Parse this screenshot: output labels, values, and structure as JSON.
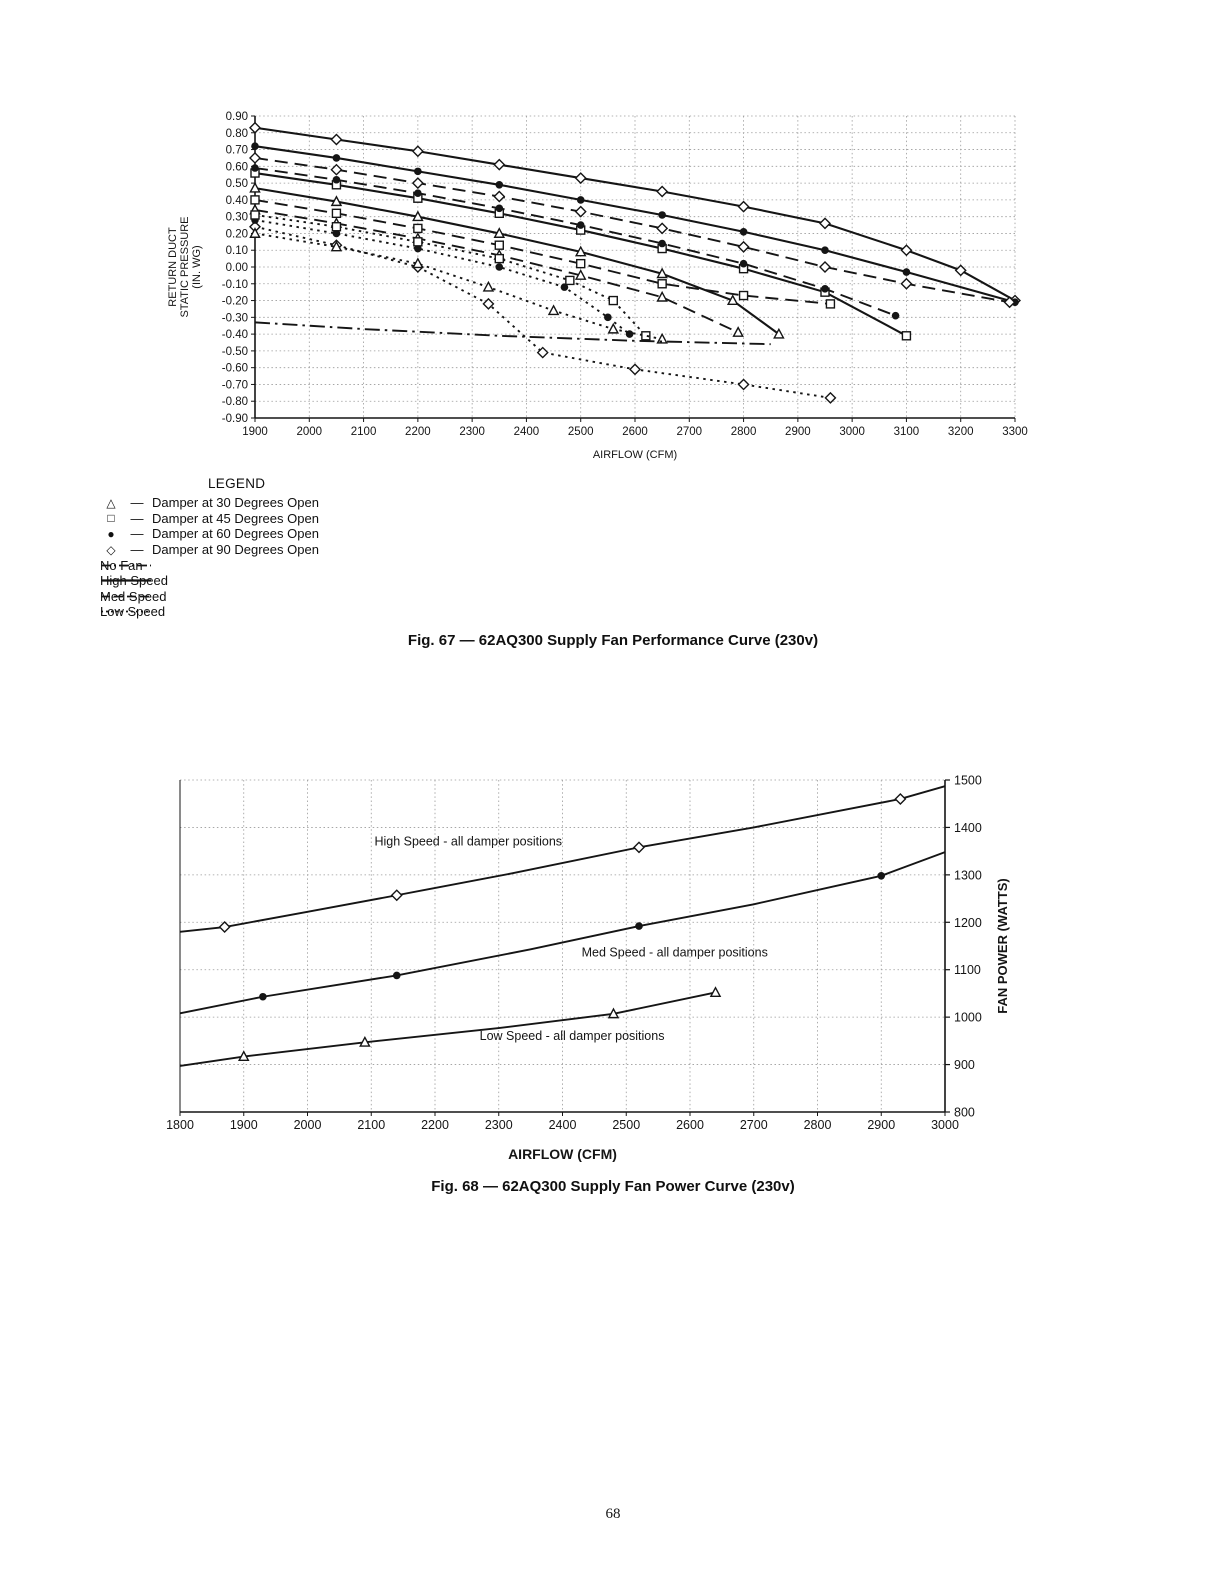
{
  "page": {
    "number": "68"
  },
  "chart_data": [
    {
      "type": "line",
      "caption": "Fig. 67 — 62AQ300 Supply Fan Performance Curve (230v)",
      "xlabel": "AIRFLOW (CFM)",
      "ylabel_lines": [
        "RETURN DUCT",
        "STATIC PRESSURE",
        "(IN. WG)"
      ],
      "xlim": [
        1900,
        3300
      ],
      "xtick_step": 100,
      "ylim": [
        -0.9,
        0.9
      ],
      "ytick_step": 0.1,
      "ytick_decimals": 2,
      "grid": true,
      "legend": {
        "title": "LEGEND",
        "marker_items": [
          {
            "symbol": "triangle",
            "label": "Damper at 30 Degrees Open"
          },
          {
            "symbol": "square",
            "label": "Damper at 45 Degrees Open"
          },
          {
            "symbol": "circle",
            "label": "Damper at 60 Degrees Open"
          },
          {
            "symbol": "diamond",
            "label": "Damper at 90 Degrees Open"
          }
        ],
        "line_items": [
          {
            "style": "dashdot",
            "label": "No Fan"
          },
          {
            "style": "solid",
            "label": "High Speed"
          },
          {
            "style": "longdash",
            "label": "Med Speed"
          },
          {
            "style": "dotted",
            "label": "Low Speed"
          }
        ]
      },
      "series": [
        {
          "name": "High Speed — Damper 90° Open",
          "marker": "diamond",
          "dash": "solid",
          "lw": 2.1,
          "points": [
            [
              1900,
              0.83
            ],
            [
              2050,
              0.76
            ],
            [
              2200,
              0.69
            ],
            [
              2350,
              0.61
            ],
            [
              2500,
              0.53
            ],
            [
              2650,
              0.45
            ],
            [
              2800,
              0.36
            ],
            [
              2950,
              0.26
            ],
            [
              3100,
              0.1
            ],
            [
              3200,
              -0.02
            ],
            [
              3300,
              -0.2
            ]
          ]
        },
        {
          "name": "High Speed — Damper 60° Open",
          "marker": "circle",
          "dash": "solid",
          "lw": 2.1,
          "points": [
            [
              1900,
              0.72
            ],
            [
              2050,
              0.65
            ],
            [
              2200,
              0.57
            ],
            [
              2350,
              0.49
            ],
            [
              2500,
              0.4
            ],
            [
              2650,
              0.31
            ],
            [
              2800,
              0.21
            ],
            [
              2950,
              0.1
            ],
            [
              3100,
              -0.03
            ],
            [
              3300,
              -0.21
            ]
          ]
        },
        {
          "name": "High Speed — Damper 45° Open",
          "marker": "square",
          "dash": "solid",
          "lw": 2.1,
          "points": [
            [
              1900,
              0.56
            ],
            [
              2050,
              0.49
            ],
            [
              2200,
              0.41
            ],
            [
              2350,
              0.32
            ],
            [
              2500,
              0.22
            ],
            [
              2650,
              0.11
            ],
            [
              2800,
              -0.01
            ],
            [
              2950,
              -0.15
            ],
            [
              3100,
              -0.41
            ]
          ]
        },
        {
          "name": "High Speed — Damper 30° Open",
          "marker": "triangle",
          "dash": "solid",
          "lw": 2.1,
          "points": [
            [
              1900,
              0.47
            ],
            [
              2050,
              0.39
            ],
            [
              2200,
              0.3
            ],
            [
              2350,
              0.2
            ],
            [
              2500,
              0.09
            ],
            [
              2650,
              -0.04
            ],
            [
              2780,
              -0.2
            ],
            [
              2865,
              -0.4
            ]
          ]
        },
        {
          "name": "Med Speed — Damper 90° Open",
          "marker": "diamond",
          "dash": "longdash",
          "points": [
            [
              1900,
              0.65
            ],
            [
              2050,
              0.58
            ],
            [
              2200,
              0.5
            ],
            [
              2350,
              0.42
            ],
            [
              2500,
              0.33
            ],
            [
              2650,
              0.23
            ],
            [
              2800,
              0.12
            ],
            [
              2950,
              0.0
            ],
            [
              3100,
              -0.1
            ],
            [
              3290,
              -0.21
            ]
          ]
        },
        {
          "name": "Med Speed — Damper 60° Open",
          "marker": "circle",
          "dash": "longdash",
          "points": [
            [
              1900,
              0.59
            ],
            [
              2050,
              0.52
            ],
            [
              2200,
              0.44
            ],
            [
              2350,
              0.35
            ],
            [
              2500,
              0.25
            ],
            [
              2650,
              0.14
            ],
            [
              2800,
              0.02
            ],
            [
              2950,
              -0.13
            ],
            [
              3080,
              -0.29
            ]
          ]
        },
        {
          "name": "Med Speed — Damper 45° Open",
          "marker": "square",
          "dash": "longdash",
          "points": [
            [
              1900,
              0.4
            ],
            [
              2050,
              0.32
            ],
            [
              2200,
              0.23
            ],
            [
              2350,
              0.13
            ],
            [
              2500,
              0.02
            ],
            [
              2650,
              -0.1
            ],
            [
              2800,
              -0.17
            ],
            [
              2960,
              -0.22
            ]
          ]
        },
        {
          "name": "Med Speed — Damper 30° Open",
          "marker": "triangle",
          "dash": "longdash",
          "points": [
            [
              1900,
              0.34
            ],
            [
              2050,
              0.26
            ],
            [
              2200,
              0.17
            ],
            [
              2350,
              0.07
            ],
            [
              2500,
              -0.05
            ],
            [
              2650,
              -0.18
            ],
            [
              2790,
              -0.39
            ]
          ]
        },
        {
          "name": "Low Speed — Damper 90° Open",
          "marker": "diamond",
          "dash": "dotted",
          "points": [
            [
              1900,
              0.24
            ],
            [
              2050,
              0.13
            ],
            [
              2200,
              0.0
            ],
            [
              2330,
              -0.22
            ],
            [
              2430,
              -0.51
            ],
            [
              2600,
              -0.61
            ],
            [
              2800,
              -0.7
            ],
            [
              2960,
              -0.78
            ]
          ]
        },
        {
          "name": "Low Speed — Damper 60° Open",
          "marker": "circle",
          "dash": "dotted",
          "points": [
            [
              1900,
              0.28
            ],
            [
              2050,
              0.2
            ],
            [
              2200,
              0.11
            ],
            [
              2350,
              0.0
            ],
            [
              2470,
              -0.12
            ],
            [
              2550,
              -0.3
            ],
            [
              2590,
              -0.4
            ]
          ]
        },
        {
          "name": "Low Speed — Damper 45° Open",
          "marker": "square",
          "dash": "dotted",
          "points": [
            [
              1900,
              0.31
            ],
            [
              2050,
              0.24
            ],
            [
              2200,
              0.15
            ],
            [
              2350,
              0.05
            ],
            [
              2480,
              -0.08
            ],
            [
              2560,
              -0.2
            ],
            [
              2620,
              -0.41
            ]
          ]
        },
        {
          "name": "Low Speed — Damper 30° Open",
          "marker": "triangle",
          "dash": "dotted",
          "points": [
            [
              1900,
              0.2
            ],
            [
              2050,
              0.12
            ],
            [
              2200,
              0.02
            ],
            [
              2330,
              -0.12
            ],
            [
              2450,
              -0.26
            ],
            [
              2560,
              -0.37
            ],
            [
              2650,
              -0.43
            ]
          ]
        },
        {
          "name": "No Fan",
          "dash": "dashdot",
          "points": [
            [
              1900,
              -0.33
            ],
            [
              2100,
              -0.37
            ],
            [
              2350,
              -0.41
            ],
            [
              2600,
              -0.44
            ],
            [
              2850,
              -0.46
            ]
          ]
        }
      ]
    },
    {
      "type": "line",
      "caption": "Fig. 68 — 62AQ300 Supply Fan Power Curve (230v)",
      "xlabel": "AIRFLOW (CFM)",
      "ylabel": "FAN POWER (WATTS)",
      "xlim": [
        1800,
        3000
      ],
      "xtick_step": 100,
      "ylim": [
        800,
        1500
      ],
      "ytick_step": 100,
      "ytick_decimals": 0,
      "y_axis_side": "right",
      "grid": true,
      "series": [
        {
          "name": "High Speed - all damper positions",
          "marker": "diamond",
          "dash": "solid",
          "points": [
            [
              1800,
              1180
            ],
            [
              1870,
              1190
            ],
            [
              2000,
              1222
            ],
            [
              2140,
              1257
            ],
            [
              2320,
              1303
            ],
            [
              2520,
              1358
            ],
            [
              2700,
              1400
            ],
            [
              2930,
              1460
            ],
            [
              3000,
              1487
            ]
          ],
          "marker_points": [
            [
              1870,
              1190
            ],
            [
              2140,
              1257
            ],
            [
              2520,
              1358
            ],
            [
              2930,
              1460
            ]
          ]
        },
        {
          "name": "Med Speed - all damper positions",
          "marker": "circle",
          "dash": "solid",
          "points": [
            [
              1800,
              1008
            ],
            [
              1930,
              1043
            ],
            [
              2140,
              1088
            ],
            [
              2350,
              1143
            ],
            [
              2520,
              1192
            ],
            [
              2700,
              1238
            ],
            [
              2900,
              1298
            ],
            [
              3000,
              1348
            ]
          ],
          "marker_points": [
            [
              1930,
              1043
            ],
            [
              2140,
              1088
            ],
            [
              2520,
              1192
            ],
            [
              2900,
              1298
            ]
          ]
        },
        {
          "name": "Low Speed - all damper positions",
          "marker": "triangle",
          "dash": "solid",
          "points": [
            [
              1800,
              897
            ],
            [
              1900,
              917
            ],
            [
              2090,
              947
            ],
            [
              2300,
              977
            ],
            [
              2480,
              1007
            ],
            [
              2640,
              1052
            ]
          ],
          "marker_points": [
            [
              1900,
              917
            ],
            [
              2090,
              947
            ],
            [
              2480,
              1007
            ],
            [
              2640,
              1052
            ]
          ]
        }
      ],
      "annotations": [
        {
          "text": "High Speed - all damper positions",
          "x": 2105,
          "y": 1362
        },
        {
          "text": "Med Speed - all damper positions",
          "x": 2430,
          "y": 1128
        },
        {
          "text": "Low Speed - all damper positions",
          "x": 2270,
          "y": 952
        }
      ]
    }
  ]
}
